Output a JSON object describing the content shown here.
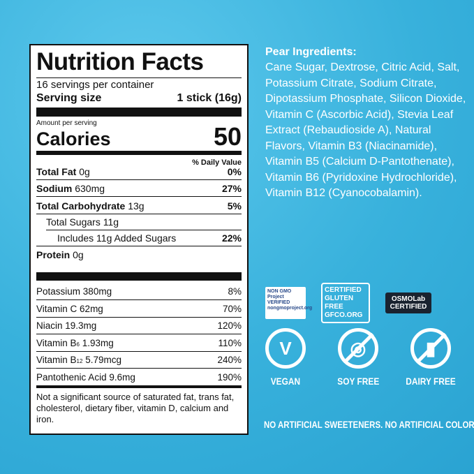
{
  "label": {
    "title": "Nutrition Facts",
    "servings": "16 servings per container",
    "serving_size_label": "Serving size",
    "serving_size_value": "1 stick (16g)",
    "amount_per_serving": "Amount per serving",
    "calories_label": "Calories",
    "calories_value": "50",
    "dv_header": "% Daily Value",
    "nutrients": [
      {
        "name": "Total Fat",
        "amount": "0g",
        "dv": "0%"
      },
      {
        "name": "Sodium",
        "amount": "630mg",
        "dv": "27%"
      },
      {
        "name": "Total Carbohydrate",
        "amount": "13g",
        "dv": "5%"
      },
      {
        "name": "Total Sugars 11g",
        "amount": "",
        "dv": ""
      },
      {
        "name": "Includes 11g Added Sugars",
        "amount": "",
        "dv": "22%"
      },
      {
        "name": "Protein",
        "amount": "0g",
        "dv": ""
      }
    ],
    "vitamins": [
      {
        "name": "Potassium",
        "sub": "",
        "amount": "380mg",
        "dv": "8%"
      },
      {
        "name": "Vitamin C",
        "sub": "",
        "amount": "62mg",
        "dv": "70%"
      },
      {
        "name": "Niacin",
        "sub": "",
        "amount": "19.3mg",
        "dv": "120%"
      },
      {
        "name": "Vitamin B",
        "sub": "6",
        "amount": "1.93mg",
        "dv": "110%"
      },
      {
        "name": "Vitamin B",
        "sub": "12",
        "amount": "5.79mcg",
        "dv": "240%"
      },
      {
        "name": "Pantothenic Acid",
        "sub": "",
        "amount": "9.6mg",
        "dv": "190%"
      }
    ],
    "footnote": "Not a significant source of saturated fat, trans fat, cholesterol, dietary fiber, vitamin D, calcium and iron."
  },
  "ingredients": {
    "heading": "Pear Ingredients:",
    "text": "Cane Sugar, Dextrose, Citric Acid, Salt, Potassium Citrate, Sodium Citrate, Dipotassium Phosphate, Silicon Dioxide, Vitamin C (Ascorbic Acid), Stevia Leaf Extract (Rebaudioside A), Natural Flavors, Vitamin B3 (Niacinamide), Vitamin B5 (Calcium D-Pantothenate), Vitamin B6 (Pyridoxine Hydrochloride), Vitamin B12 (Cyanocobalamin)."
  },
  "badges": {
    "non_gmo": "NON GMO Project VERIFIED nongmoproject.org",
    "gluten_free": "CERTIFIED GLUTEN FREE GFCO.ORG",
    "osmolab": "OSMOLab CERTIFIED"
  },
  "icons": [
    {
      "label": "VEGAN",
      "icon": "leaf-v-icon"
    },
    {
      "label": "SOY FREE",
      "icon": "soybean-crossed-icon"
    },
    {
      "label": "DAIRY FREE",
      "icon": "milk-bottle-crossed-icon"
    }
  ],
  "tagline": "NO ARTIFICIAL SWEETENERS. NO ARTIFICIAL COLORS.",
  "colors": {
    "background": "#38b1dc",
    "text": "#ffffff",
    "label_ink": "#111111"
  }
}
